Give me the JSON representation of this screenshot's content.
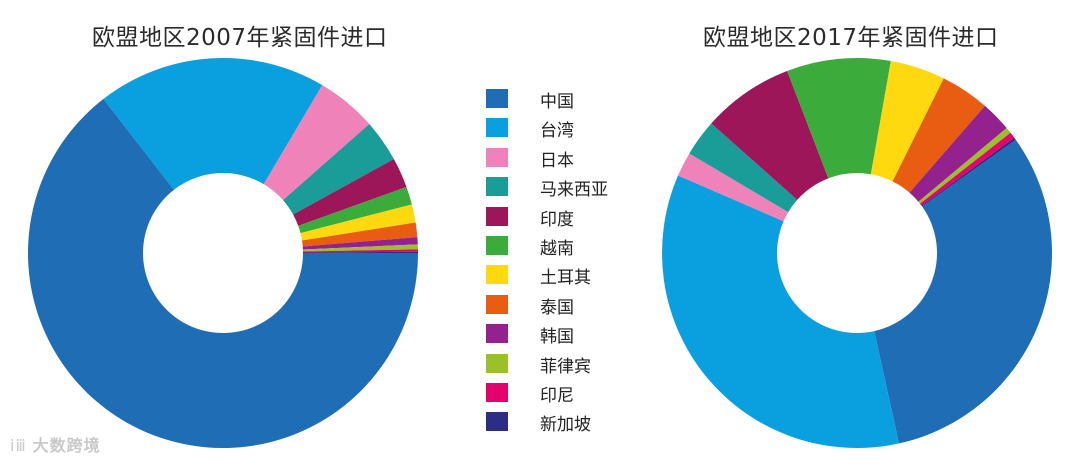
{
  "colors": [
    "#1f6db4",
    "#0aa0df",
    "#ef82b8",
    "#1a9c98",
    "#9c1659",
    "#3bac3b",
    "#ffd90f",
    "#e85d12",
    "#93218e",
    "#9bc12a",
    "#e6006e",
    "#2b2e83"
  ],
  "chart_data": [
    {
      "type": "pie",
      "title": "欧盟地区2007年紧固件进口",
      "categories": [
        "中国",
        "台湾",
        "日本",
        "马来西亚",
        "印度",
        "越南",
        "土耳其",
        "泰国",
        "韩国",
        "菲律宾",
        "印尼",
        "新加坡"
      ],
      "values": [
        64.5,
        19.0,
        5.0,
        3.5,
        2.5,
        1.5,
        1.5,
        1.2,
        0.6,
        0.4,
        0.2,
        0.1
      ],
      "legend": "center"
    },
    {
      "type": "pie",
      "title": "欧盟地区2017年紧固件进口",
      "categories": [
        "中国",
        "台湾",
        "日本",
        "马来西亚",
        "印度",
        "越南",
        "土耳其",
        "泰国",
        "韩国",
        "菲律宾",
        "印尼",
        "新加坡"
      ],
      "values": [
        31.0,
        34.5,
        2.0,
        3.0,
        7.5,
        8.5,
        4.5,
        4.0,
        2.5,
        0.5,
        0.5,
        0.2
      ],
      "legend": "center"
    }
  ],
  "watermark": {
    "logo": "ⅰⅲ",
    "text": "大数跨境"
  }
}
